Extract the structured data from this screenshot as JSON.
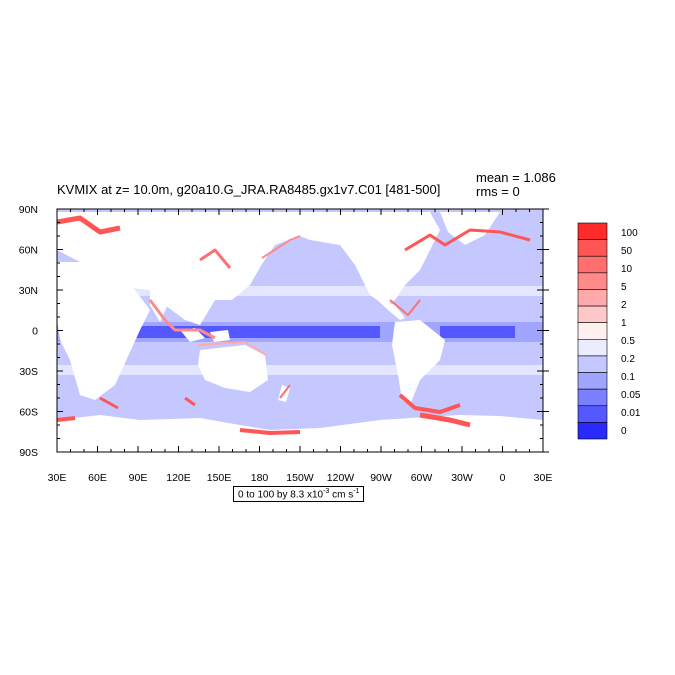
{
  "chart_data": {
    "type": "heatmap",
    "title": "KVMIX at z=  10.0m, g20a10.G_JRA.RA8485.gx1v7.C01 [481-500]",
    "stats": {
      "mean": "mean = 1.086",
      "rms": "rms = 0"
    },
    "x_ticks": [
      "30E",
      "60E",
      "90E",
      "120E",
      "150E",
      "180",
      "150W",
      "120W",
      "90W",
      "60W",
      "30W",
      "0",
      "30E"
    ],
    "y_ticks": [
      "90N",
      "60N",
      "30N",
      "0",
      "30S",
      "60S",
      "90S"
    ],
    "xlim": [
      30,
      390
    ],
    "ylim": [
      -90,
      90
    ],
    "colorbar": {
      "labels": [
        "100",
        "50",
        "10",
        "5",
        "2",
        "1",
        "0.5",
        "0.2",
        "0.1",
        "0.05",
        "0.01",
        "0"
      ],
      "colors": [
        "#ff2a2a",
        "#ff5555",
        "#ff6f6f",
        "#ff8a8a",
        "#ffaaaa",
        "#ffc8c8",
        "#fff0f0",
        "#ececff",
        "#c4c8ff",
        "#a0a5ff",
        "#7b80ff",
        "#5558ff",
        "#2a2aff"
      ]
    },
    "range_text": {
      "prefix": "0 to 100 by 8.3 x10",
      "exp": "-3",
      "suffix": " cm s",
      "unit_exp": "-1"
    }
  }
}
